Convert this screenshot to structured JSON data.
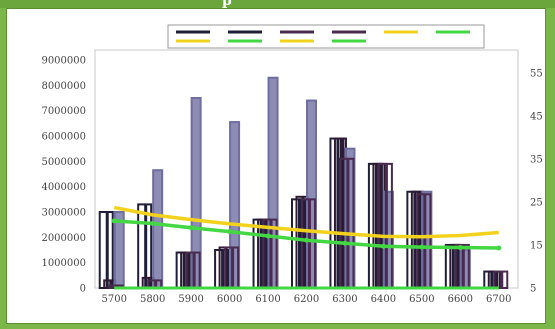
{
  "header": {
    "title_fragment": "p"
  },
  "chart_data": {
    "type": "bar",
    "title": "",
    "xlabel": "",
    "ylabel": "",
    "y2label": "",
    "categories": [
      "5700",
      "5800",
      "5900",
      "6000",
      "6100",
      "6200",
      "6300",
      "6400",
      "6500",
      "6600",
      "6700"
    ],
    "ylim": [
      0,
      9000000
    ],
    "y_ticks": [
      0,
      1000000,
      2000000,
      3000000,
      4000000,
      5000000,
      6000000,
      7000000,
      8000000,
      9000000
    ],
    "y_tick_labels": [
      "0",
      "1000000",
      "2000000",
      "3000000",
      "4000000",
      "5000000",
      "6000000",
      "7000000",
      "8000000",
      "9000000"
    ],
    "y2lim": [
      5,
      58
    ],
    "y2_ticks": [
      5,
      15,
      25,
      35,
      45,
      55
    ],
    "grid": false,
    "legend_position": "top-center",
    "bar_series": [
      {
        "color": "#1f1f3a",
        "values": [
          3000000,
          3300000,
          1400000,
          1500000,
          2700000,
          3500000,
          5900000,
          4900000,
          3800000,
          1700000,
          650000
        ]
      },
      {
        "color": "#2e1a33",
        "values": [
          300000,
          400000,
          1400000,
          1600000,
          2700000,
          3600000,
          5900000,
          4900000,
          3800000,
          1700000,
          650000
        ]
      },
      {
        "color": "#6e6ea0",
        "values": [
          3000000,
          4650000,
          7500000,
          6550000,
          8300000,
          7400000,
          5500000,
          3800000,
          3800000,
          1500000,
          0
        ]
      },
      {
        "color": "#4a2b4f",
        "values": [
          100000,
          300000,
          1400000,
          1600000,
          2700000,
          3500000,
          5100000,
          4900000,
          3700000,
          1700000,
          650000
        ]
      }
    ],
    "line_series": [
      {
        "color": "#f2d21c",
        "values": [
          23.7,
          22.0,
          20.9,
          19.9,
          19.1,
          18.3,
          17.6,
          17.0,
          16.9,
          17.2,
          17.9
        ]
      },
      {
        "color": "#43d843",
        "values": [
          20.6,
          20.0,
          19.0,
          18.1,
          17.1,
          16.1,
          15.4,
          14.7,
          14.5,
          14.4,
          14.3
        ]
      },
      {
        "color": "#43d843",
        "values": [
          5.0,
          5.0,
          5.0,
          5.0,
          5.0,
          5.0,
          5.0,
          5.0,
          5.0,
          5.0,
          5.0
        ]
      }
    ],
    "legend": [
      {
        "color": "#1f1f3a",
        "color2": "#f2d21c"
      },
      {
        "color": "#1f1f3a",
        "color2": "#43d843"
      },
      {
        "color": "#4a2b4f",
        "color2": "#f2d21c"
      },
      {
        "color": "#4a2b4f",
        "color2": "#43d843"
      },
      {
        "color": "#f2d21c",
        "color2": "#ffffff"
      },
      {
        "color": "#43d843",
        "color2": "#ffffff"
      }
    ]
  }
}
